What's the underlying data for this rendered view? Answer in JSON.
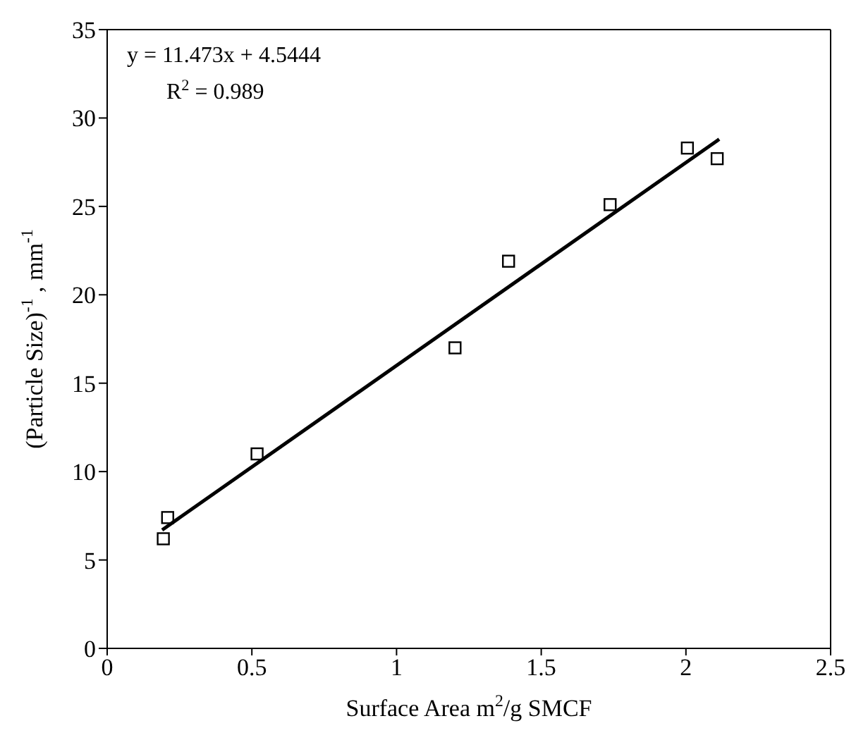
{
  "chart_data": {
    "type": "scatter",
    "xlabel": "Surface Area m$^{2}$/g SMCF",
    "ylabel": "(Particle Size)$^{-1}$ , mm$^{-1}$",
    "annotations": [
      "y = 11.473x + 4.5444",
      "R$^{2}$ = 0.989"
    ],
    "xlim": [
      0,
      2.5
    ],
    "xticks": [
      0,
      0.5,
      1,
      1.5,
      2,
      2.5
    ],
    "ylim": [
      0,
      35
    ],
    "yticks": [
      0,
      5,
      10,
      15,
      20,
      25,
      30,
      35
    ],
    "grid": false,
    "legend": false,
    "series": [
      {
        "marker": "square",
        "color": "#000000",
        "x": [
          0.194,
          0.209,
          0.518,
          1.202,
          1.387,
          1.738,
          2.005,
          2.108
        ],
        "values": [
          6.2,
          7.4,
          11.0,
          17.0,
          21.9,
          25.1,
          28.3,
          27.7
        ]
      },
      {
        "type": "line",
        "marker": "none",
        "color": "#000000",
        "x": [
          0.19,
          2.115
        ],
        "values": [
          6.7,
          28.8
        ]
      }
    ]
  }
}
